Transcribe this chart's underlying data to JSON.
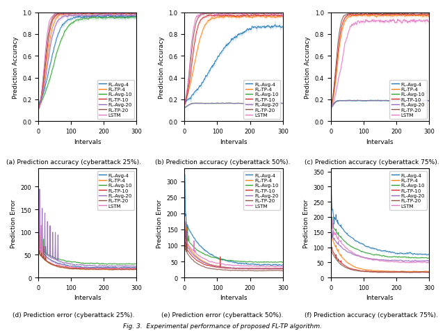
{
  "series_labels": [
    "FL-Avg-4",
    "FL-TP-4",
    "FL-Avg-10",
    "FL-TP-10",
    "FL-Avg-20",
    "FL-TP-20",
    "LSTM"
  ],
  "series_colors": [
    "#1f77b4",
    "#ff7f0e",
    "#2ca02c",
    "#d62728",
    "#9467bd",
    "#8c564b",
    "#e377c2"
  ],
  "n_intervals": 300,
  "subplot_titles": [
    "(a) Prediction accuracy (cyberattack 25%).",
    "(b) Prediction accuracy (cyberattack 50%).",
    "(c) Prediction accuracy (cyberattack 75%).",
    "(d) Prediction error (cyberattack 25%).",
    "(e) Prediction error (cyberattack 50%).",
    "(f) Prediction accuracy (cyberattack 75%)."
  ],
  "fig_caption": "Fig. 3.  Experimental performance of proposed FL-TP algorithm.",
  "xlabel": "Intervals",
  "ylabel_accuracy": "Prediction Accuracy",
  "ylabel_error": "Prediction Error",
  "figsize": [
    6.4,
    4.77
  ],
  "dpi": 100
}
